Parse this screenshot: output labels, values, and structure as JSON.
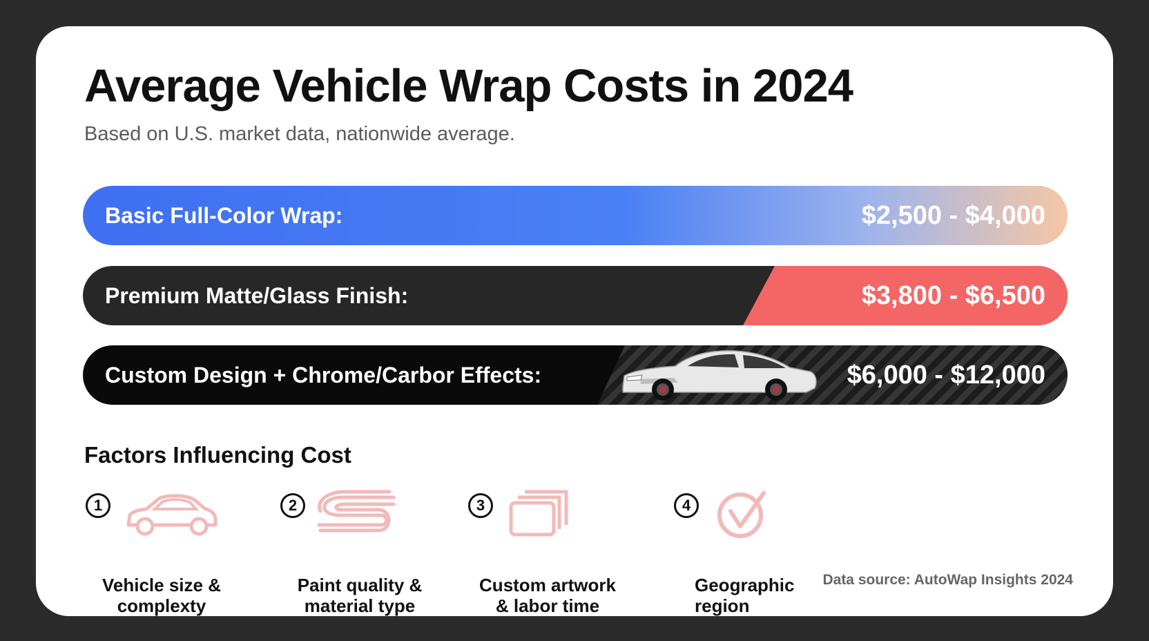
{
  "title": "Average Vehicle Wrap Costs in 2024",
  "subtitle": "Based on U.S. market data, nationwide average.",
  "tiers": [
    {
      "label": "Basic Full-Color Wrap:",
      "price": "$2,500 - $4,000"
    },
    {
      "label": "Premium Matte/Glass Finish:",
      "price": "$3,800 - $6,500"
    },
    {
      "label": "Custom Design + Chrome/Carbor Effects:",
      "price": "$6,000 - $12,000"
    }
  ],
  "factors": {
    "heading": "Factors Influencing Cost",
    "items": [
      {
        "number": "1",
        "line1": "Vehicle size &",
        "line2": "complexty",
        "icon": "car-outline-icon"
      },
      {
        "number": "2",
        "line1": "Paint quality &",
        "line2": "material type",
        "icon": "paint-swoosh-icon"
      },
      {
        "number": "3",
        "line1": "Custom artwork",
        "line2": "& labor time",
        "icon": "layers-icon"
      },
      {
        "number": "4",
        "line1": "Geographic",
        "line2": "region",
        "icon": "location-check-icon"
      }
    ]
  },
  "source": "Data source: AutoWap Insights 2024",
  "colors": {
    "background": "#2b2b2b",
    "card": "#ffffff",
    "basic_gradient_start": "#3f6ff2",
    "basic_gradient_end": "#f5c7a5",
    "premium_dark": "#272727",
    "premium_accent": "#f46666",
    "custom_dark": "#0a0a0a",
    "icon_pink": "#f2b9b9"
  }
}
